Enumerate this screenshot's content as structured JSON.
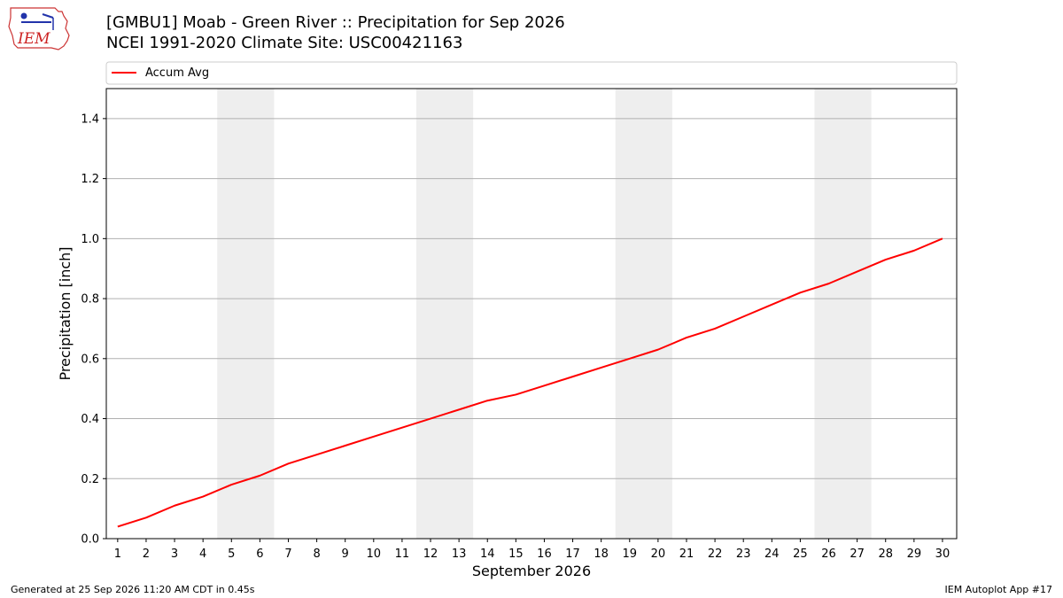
{
  "header": {
    "logo_text": "IEM",
    "title_line1": "[GMBU1] Moab - Green River :: Precipitation for Sep 2026",
    "title_line2": "NCEI 1991-2020 Climate Site: USC00421163"
  },
  "footer": {
    "generated": "Generated at 25 Sep 2026 11:20 AM CDT in 0.45s",
    "app": "IEM Autoplot App #17"
  },
  "chart_data": {
    "type": "line",
    "xlabel": "September 2026",
    "ylabel": "Precipitation [inch]",
    "x": [
      1,
      2,
      3,
      4,
      5,
      6,
      7,
      8,
      9,
      10,
      11,
      12,
      13,
      14,
      15,
      16,
      17,
      18,
      19,
      20,
      21,
      22,
      23,
      24,
      25,
      26,
      27,
      28,
      29,
      30
    ],
    "xlim": [
      0.6,
      30.5
    ],
    "ylim": [
      0,
      1.5
    ],
    "yticks": [
      0.0,
      0.2,
      0.4,
      0.6,
      0.8,
      1.0,
      1.2,
      1.4
    ],
    "ytick_labels": [
      "0.0",
      "0.2",
      "0.4",
      "0.6",
      "0.8",
      "1.0",
      "1.2",
      "1.4"
    ],
    "weekend_spans": [
      [
        4.5,
        6.5
      ],
      [
        11.5,
        13.5
      ],
      [
        18.5,
        20.5
      ],
      [
        25.5,
        27.5
      ]
    ],
    "weekend_color": "#eeeeee",
    "grid": "horizontal",
    "legend": "top",
    "series": [
      {
        "name": "Accum Avg",
        "color": "#ff0000",
        "values": [
          0.04,
          0.07,
          0.11,
          0.14,
          0.18,
          0.21,
          0.25,
          0.28,
          0.31,
          0.34,
          0.37,
          0.4,
          0.43,
          0.46,
          0.48,
          0.51,
          0.54,
          0.57,
          0.6,
          0.63,
          0.67,
          0.7,
          0.74,
          0.78,
          0.82,
          0.85,
          0.89,
          0.93,
          0.96,
          1.0
        ]
      }
    ]
  }
}
